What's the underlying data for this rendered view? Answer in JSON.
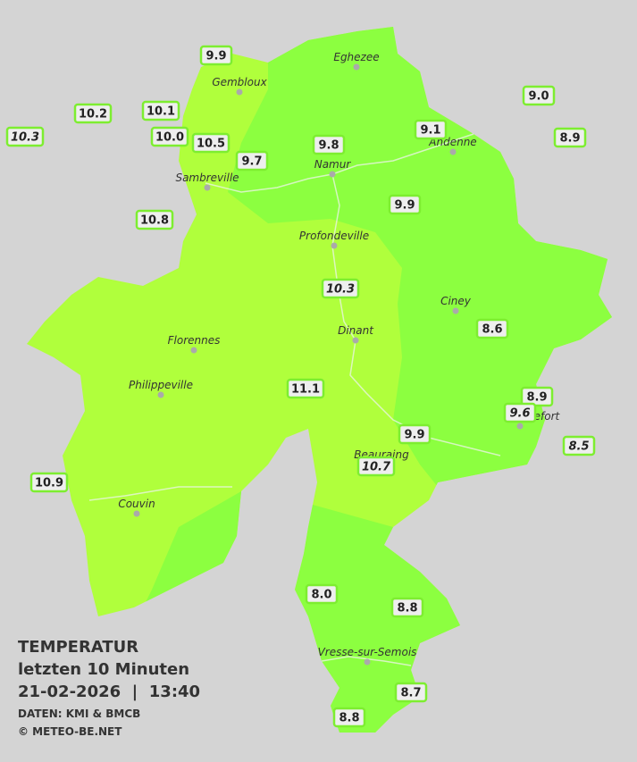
{
  "legend": {
    "title": "TEMPERATUR",
    "subtitle": "letzten 10 Minuten",
    "datetime": "21-02-2026  |  13:40",
    "source": "DATEN: KMI & BMCB",
    "copyright": "© METEO-BE.NET"
  },
  "cities": [
    "Eghezee",
    "Gembloux",
    "Andenne",
    "Namur",
    "Sambreville",
    "Profondeville",
    "Ciney",
    "Dinant",
    "Florennes",
    "Philippeville",
    "Rochefort",
    "Beauraing",
    "Couvin",
    "Vresse-sur-Semois"
  ],
  "stations": [
    {
      "label": "9.9",
      "italic": false
    },
    {
      "label": "10.2",
      "italic": false
    },
    {
      "label": "10.3",
      "italic": true
    },
    {
      "label": "10.1",
      "italic": false
    },
    {
      "label": "10.0",
      "italic": false
    },
    {
      "label": "10.5",
      "italic": false
    },
    {
      "label": "9.7",
      "italic": false
    },
    {
      "label": "9.8",
      "italic": false
    },
    {
      "label": "9.1",
      "italic": false
    },
    {
      "label": "9.0",
      "italic": false
    },
    {
      "label": "8.9",
      "italic": false
    },
    {
      "label": "9.9",
      "italic": false
    },
    {
      "label": "10.8",
      "italic": false
    },
    {
      "label": "10.3",
      "italic": true
    },
    {
      "label": "8.6",
      "italic": false
    },
    {
      "label": "11.1",
      "italic": false
    },
    {
      "label": "8.9",
      "italic": false
    },
    {
      "label": "9.6",
      "italic": true
    },
    {
      "label": "8.5",
      "italic": true
    },
    {
      "label": "9.9",
      "italic": false
    },
    {
      "label": "10.7",
      "italic": true
    },
    {
      "label": "10.9",
      "italic": false
    },
    {
      "label": "8.0",
      "italic": false
    },
    {
      "label": "8.8",
      "italic": false
    },
    {
      "label": "8.7",
      "italic": false
    },
    {
      "label": "8.8",
      "italic": false
    }
  ]
}
